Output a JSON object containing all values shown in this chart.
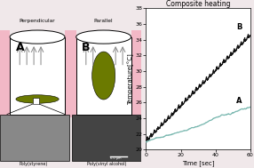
{
  "title": "Composite heating",
  "xlabel": "Time [sec]",
  "ylabel": "Temperature[°C]",
  "xlim": [
    0,
    60
  ],
  "ylim": [
    20,
    38
  ],
  "yticks": [
    20,
    22,
    24,
    26,
    28,
    30,
    32,
    34,
    36,
    38
  ],
  "xticks": [
    0,
    20,
    40,
    60
  ],
  "line_B_color": "#111111",
  "line_A_color": "#7ab8b0",
  "label_A": "A",
  "label_B": "B",
  "bg_color": "#ffffff",
  "fig_bg": "#f0e8ea",
  "left_bg": "#f0e8ea",
  "perpendicular_label": "Perpendicular",
  "parallel_label": "Parallel",
  "poly_styrene_label": "Poly(styrene)",
  "poly_vinyl_label": "Poly(vinyl alcohol)",
  "composite_color": "#6b7a00",
  "pink_color": "#f2b8c6",
  "arrow_color": "#888888",
  "scale_bar": "6.0 μm"
}
